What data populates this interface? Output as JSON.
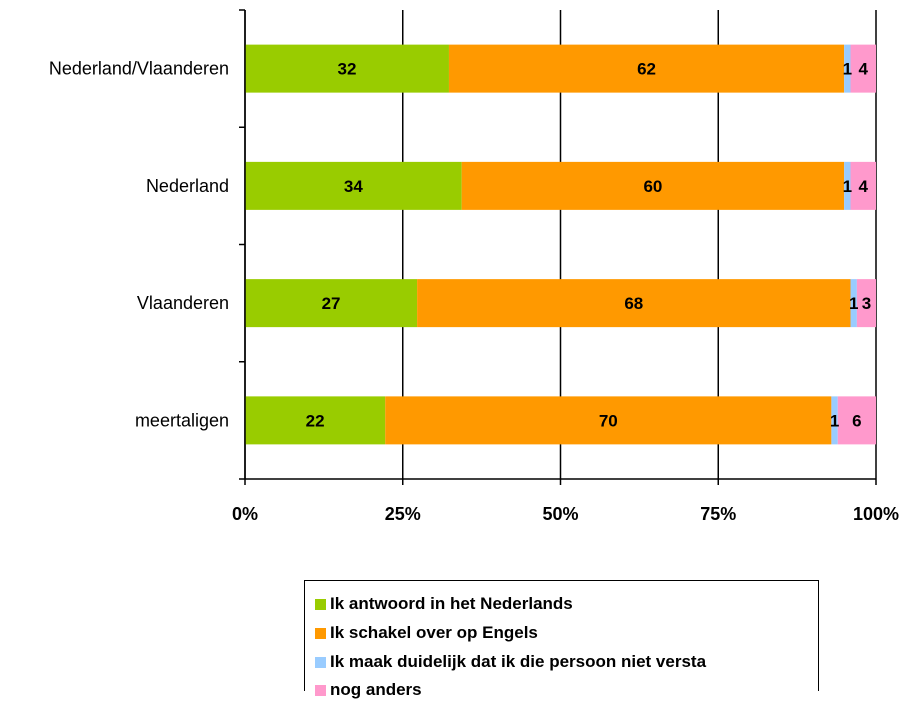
{
  "chart_data": {
    "type": "bar",
    "orientation": "horizontal",
    "stacked": "percent",
    "categories": [
      "Nederland/Vlaanderen",
      "Nederland",
      "Vlaanderen",
      "meertaligen"
    ],
    "series": [
      {
        "name": "Ik antwoord in het Nederlands",
        "color": "#99CC00",
        "values": [
          32,
          34,
          27,
          22
        ]
      },
      {
        "name": "Ik schakel over op Engels",
        "color": "#FF9900",
        "values": [
          62,
          60,
          68,
          70
        ]
      },
      {
        "name": "Ik maak duidelijk dat ik die persoon niet versta",
        "color": "#99CCFF",
        "values": [
          1,
          1,
          1,
          1
        ]
      },
      {
        "name": "nog anders",
        "color": "#FF99CC",
        "values": [
          4,
          4,
          3,
          6
        ]
      }
    ],
    "x_ticks": [
      "0%",
      "25%",
      "50%",
      "75%",
      "100%"
    ],
    "xlim": [
      0,
      100
    ],
    "grid": true,
    "legend_position": "bottom"
  },
  "legend": {
    "items": [
      {
        "label": "Ik antwoord in het Nederlands",
        "color": "#99CC00"
      },
      {
        "label": "Ik schakel over op Engels",
        "color": "#FF9900"
      },
      {
        "label": "Ik maak duidelijk dat ik die persoon niet versta",
        "color": "#99CCFF"
      },
      {
        "label": "nog anders",
        "color": "#FF99CC"
      }
    ]
  }
}
